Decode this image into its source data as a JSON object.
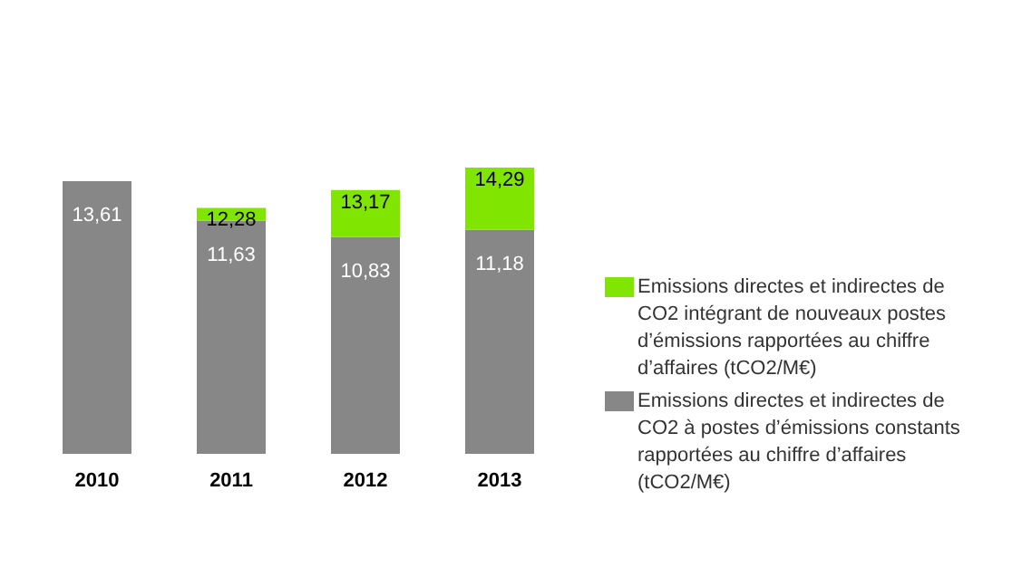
{
  "chart_data": {
    "type": "bar",
    "stacked": true,
    "categories": [
      "2010",
      "2011",
      "2012",
      "2013"
    ],
    "series": [
      {
        "name": "Emissions directes et indirectes de CO2 à postes d’émissions constants rapportées au chiffre d’affaires (tCO2/M€)",
        "color": "#878787",
        "values": [
          13.61,
          11.63,
          10.83,
          11.18
        ],
        "value_labels": [
          "13,61",
          "11,63",
          "10,83",
          "11,18"
        ]
      },
      {
        "name": "Emissions directes et indirectes de CO2 intégrant de nouveaux postes d’émissions rapportées au chiffre d’affaires (tCO2/M€)",
        "color": "#80e500",
        "values": [
          null,
          0.65,
          2.34,
          3.11
        ]
      }
    ],
    "totals": [
      null,
      "12,28",
      "13,17",
      "14,29"
    ],
    "legend": "right",
    "grid": false
  }
}
